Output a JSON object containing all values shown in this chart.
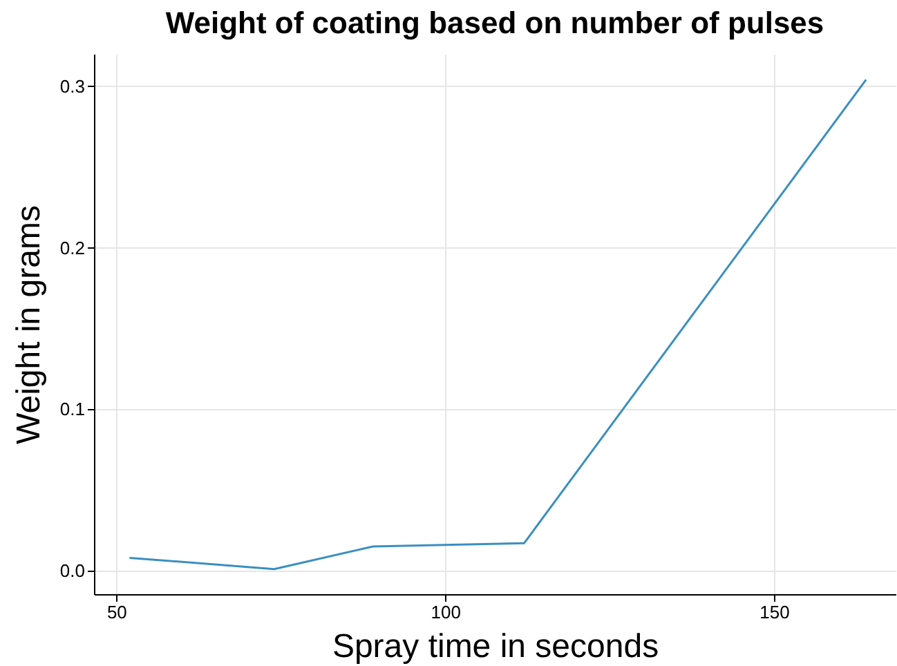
{
  "chart_data": {
    "type": "line",
    "title": "Weight of coating based on number of pulses",
    "xlabel": "Spray time in seconds",
    "ylabel": "Weight in grams",
    "x": [
      52,
      74,
      89,
      112,
      164
    ],
    "series": [
      {
        "color": "#3a8fc0",
        "values": [
          0.008,
          0.001,
          0.015,
          0.017,
          0.304
        ]
      }
    ],
    "xlim": [
      46.6,
      168.5
    ],
    "xticks": [
      50,
      100,
      150
    ],
    "ylim": [
      -0.0145,
      0.32
    ],
    "yticks": [
      {
        "value": 0,
        "label": "0.0"
      },
      0.1,
      0.2,
      0.3
    ],
    "grid": true
  }
}
